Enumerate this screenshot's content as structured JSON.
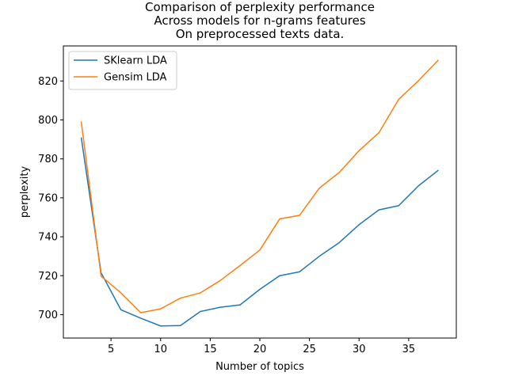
{
  "chart_data": {
    "type": "line",
    "title": "Comparison of perplexity performance\nAcross models for n-grams features\nOn preprocessed texts data.",
    "xlabel": "Number of topics",
    "ylabel": "perplexity",
    "xlim": [
      0.2,
      39.8
    ],
    "ylim": [
      688,
      838
    ],
    "xticks": [
      5,
      10,
      15,
      20,
      25,
      30,
      35
    ],
    "yticks": [
      700,
      720,
      740,
      760,
      780,
      800,
      820
    ],
    "grid": false,
    "legend_position": "top-left",
    "x": [
      2,
      4,
      6,
      8,
      10,
      12,
      14,
      16,
      18,
      20,
      22,
      24,
      26,
      28,
      30,
      32,
      34,
      36,
      38
    ],
    "series": [
      {
        "name": "SKlearn LDA",
        "color": "#1f77b4",
        "values": [
          791,
          721.5,
          702.5,
          698.2,
          694.2,
          694.4,
          701.6,
          703.8,
          705,
          713,
          720,
          722,
          730,
          737,
          746.2,
          753.8,
          756,
          766.2,
          774.2
        ]
      },
      {
        "name": "Gensim LDA",
        "color": "#ff7f0e",
        "values": [
          799.2,
          719.8,
          711.2,
          701,
          703,
          708.5,
          711.2,
          717.5,
          725.2,
          733.2,
          749.2,
          751,
          765,
          773,
          784.2,
          793.4,
          810.6,
          820.2,
          830.8
        ]
      }
    ]
  }
}
